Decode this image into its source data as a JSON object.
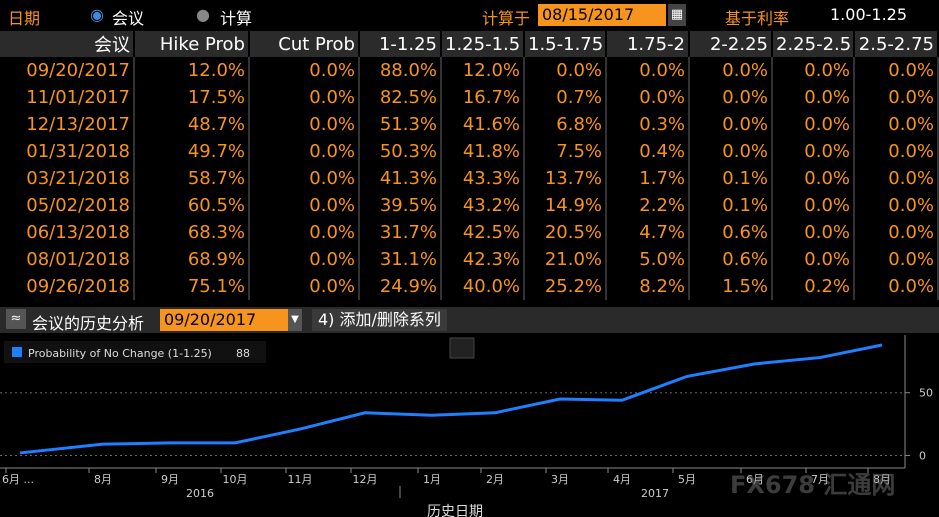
{
  "header": {
    "date_label": "日期",
    "mode_meeting": "会议",
    "mode_calc": "计算",
    "calc_on_label": "计算于",
    "calc_on_date": "08/15/2017",
    "base_rate_label": "基于利率",
    "base_rate": "1.00-1.25"
  },
  "table": {
    "columns": [
      "会议",
      "Hike Prob",
      "Cut Prob",
      "1-1.25",
      "1.25-1.5",
      "1.5-1.75",
      "1.75-2",
      "2-2.25",
      "2.25-2.5",
      "2.5-2.75"
    ],
    "rows": [
      [
        "09/20/2017",
        "12.0%",
        "0.0%",
        "88.0%",
        "12.0%",
        "0.0%",
        "0.0%",
        "0.0%",
        "0.0%",
        "0.0%"
      ],
      [
        "11/01/2017",
        "17.5%",
        "0.0%",
        "82.5%",
        "16.7%",
        "0.7%",
        "0.0%",
        "0.0%",
        "0.0%",
        "0.0%"
      ],
      [
        "12/13/2017",
        "48.7%",
        "0.0%",
        "51.3%",
        "41.6%",
        "6.8%",
        "0.3%",
        "0.0%",
        "0.0%",
        "0.0%"
      ],
      [
        "01/31/2018",
        "49.7%",
        "0.0%",
        "50.3%",
        "41.8%",
        "7.5%",
        "0.4%",
        "0.0%",
        "0.0%",
        "0.0%"
      ],
      [
        "03/21/2018",
        "58.7%",
        "0.0%",
        "41.3%",
        "43.3%",
        "13.7%",
        "1.7%",
        "0.1%",
        "0.0%",
        "0.0%"
      ],
      [
        "05/02/2018",
        "60.5%",
        "0.0%",
        "39.5%",
        "43.2%",
        "14.9%",
        "2.2%",
        "0.1%",
        "0.0%",
        "0.0%"
      ],
      [
        "06/13/2018",
        "68.3%",
        "0.0%",
        "31.7%",
        "42.5%",
        "20.5%",
        "4.7%",
        "0.6%",
        "0.0%",
        "0.0%"
      ],
      [
        "08/01/2018",
        "68.9%",
        "0.0%",
        "31.1%",
        "42.3%",
        "21.0%",
        "5.0%",
        "0.6%",
        "0.0%",
        "0.0%"
      ],
      [
        "09/26/2018",
        "75.1%",
        "0.0%",
        "24.9%",
        "40.0%",
        "25.2%",
        "8.2%",
        "1.5%",
        "0.2%",
        "0.0%"
      ]
    ]
  },
  "history": {
    "title": "会议的历史分析",
    "meeting": "09/20/2017",
    "series_button": "4) 添加/删除系列"
  },
  "chart_data": {
    "type": "line",
    "x_label": "历史日期",
    "categories": [
      "6月 ...",
      "8月",
      "9月",
      "10月",
      "11月",
      "12月",
      "1月",
      "2月",
      "3月",
      "4月",
      "5月",
      "6月",
      "7月",
      "8月"
    ],
    "x_group_labels": [
      "2016",
      "2017"
    ],
    "series": [
      {
        "name": "Probability of No Change (1-1.25)",
        "last_value": 88.0,
        "color": "#1f7fff",
        "values": [
          2,
          9,
          10,
          10,
          21,
          34,
          32,
          34,
          45,
          44,
          63,
          73,
          78,
          88
        ]
      }
    ],
    "ylim": [
      -10,
      92
    ],
    "yticks": [
      0,
      50
    ],
    "grid": true,
    "legend": "top-left",
    "watermark": "FX678 汇通网"
  }
}
